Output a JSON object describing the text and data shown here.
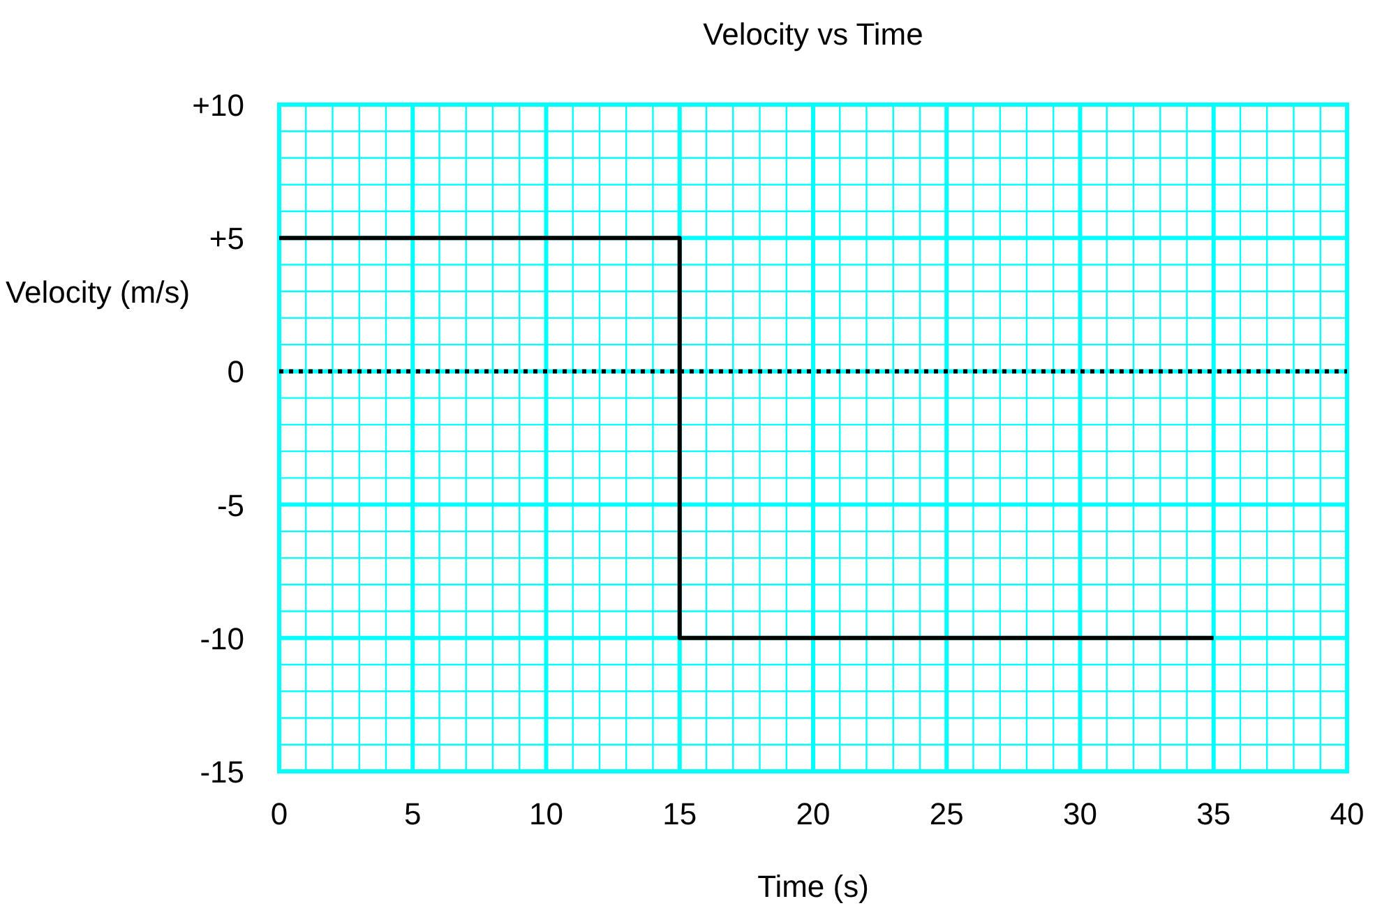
{
  "chart_data": {
    "type": "step",
    "title": "Velocity vs Time",
    "xlabel": "Time (s)",
    "ylabel": "Velocity (m/s)",
    "x": [
      0,
      15,
      35
    ],
    "series": [
      {
        "color": "#000000",
        "values": [
          5,
          -10,
          -10
        ]
      }
    ],
    "xlim": [
      0,
      40
    ],
    "ylim": [
      -15,
      10
    ],
    "xticks": [
      0,
      {
        "value": 1,
        "label": null
      },
      {
        "value": 2,
        "label": null
      },
      {
        "value": 3,
        "label": null
      },
      {
        "value": 4,
        "label": null
      },
      5,
      {
        "value": 6,
        "label": null
      },
      {
        "value": 7,
        "label": null
      },
      {
        "value": 8,
        "label": null
      },
      {
        "value": 9,
        "label": null
      },
      10,
      {
        "value": 11,
        "label": null
      },
      {
        "value": 12,
        "label": null
      },
      {
        "value": 13,
        "label": null
      },
      {
        "value": 14,
        "label": null
      },
      15,
      {
        "value": 16,
        "label": null
      },
      {
        "value": 17,
        "label": null
      },
      {
        "value": 18,
        "label": null
      },
      {
        "value": 19,
        "label": null
      },
      20,
      {
        "value": 21,
        "label": null
      },
      {
        "value": 22,
        "label": null
      },
      {
        "value": 23,
        "label": null
      },
      {
        "value": 24,
        "label": null
      },
      25,
      {
        "value": 26,
        "label": null
      },
      {
        "value": 27,
        "label": null
      },
      {
        "value": 28,
        "label": null
      },
      {
        "value": 29,
        "label": null
      },
      30,
      {
        "value": 31,
        "label": null
      },
      {
        "value": 32,
        "label": null
      },
      {
        "value": 33,
        "label": null
      },
      {
        "value": 34,
        "label": null
      },
      35,
      {
        "value": 36,
        "label": null
      },
      {
        "value": 37,
        "label": null
      },
      {
        "value": 38,
        "label": null
      },
      {
        "value": 39,
        "label": null
      },
      40
    ],
    "yticks": [
      {
        "value": 10,
        "label": "+10"
      },
      {
        "value": 9,
        "label": null
      },
      {
        "value": 8,
        "label": null
      },
      {
        "value": 7,
        "label": null
      },
      {
        "value": 6,
        "label": null
      },
      {
        "value": 5,
        "label": "+5"
      },
      {
        "value": 4,
        "label": null
      },
      {
        "value": 3,
        "label": null
      },
      {
        "value": 2,
        "label": null
      },
      {
        "value": 1,
        "label": null
      },
      0,
      {
        "value": -1,
        "label": null
      },
      {
        "value": -2,
        "label": null
      },
      {
        "value": -3,
        "label": null
      },
      {
        "value": -4,
        "label": null
      },
      -5,
      {
        "value": -6,
        "label": null
      },
      {
        "value": -7,
        "label": null
      },
      {
        "value": -8,
        "label": null
      },
      {
        "value": -9,
        "label": null
      },
      -10,
      {
        "value": -11,
        "label": null
      },
      {
        "value": -12,
        "label": null
      },
      {
        "value": -13,
        "label": null
      },
      {
        "value": -14,
        "label": null
      },
      -15
    ],
    "grid": true,
    "ref_lines": [
      {
        "axis": "y",
        "value": 0,
        "color": "#000000",
        "line_style": "dotted"
      }
    ]
  }
}
